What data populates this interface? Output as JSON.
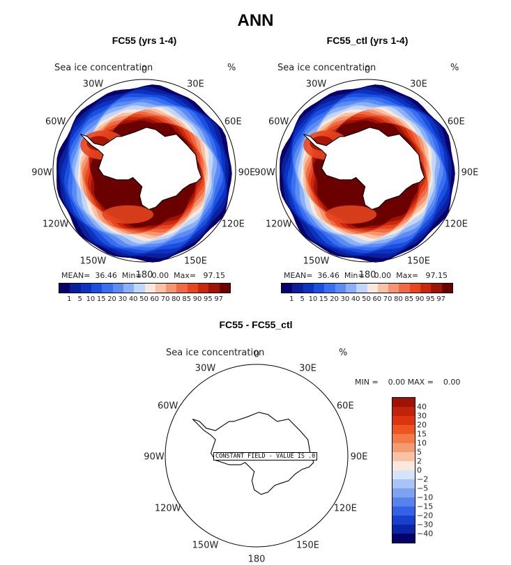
{
  "title": "ANN",
  "panels": [
    {
      "subtitle": "FC55 (yrs 1-4)",
      "var_label": "Sea ice concentration",
      "unit": "%",
      "lon_labels": [
        "0",
        "30E",
        "60E",
        "90E",
        "120E",
        "150E",
        "180",
        "150W",
        "120W",
        "90W",
        "60W",
        "30W"
      ],
      "stats": "MEAN=  36.46  Min=    0.00  Max=   97.15"
    },
    {
      "subtitle": "FC55_ctl (yrs 1-4)",
      "var_label": "Sea ice concentration",
      "unit": "%",
      "lon_labels": [
        "0",
        "30E",
        "60E",
        "90E",
        "120E",
        "150E",
        "180",
        "150W",
        "120W",
        "90W",
        "60W",
        "30W"
      ],
      "stats": "MEAN=  36.46  Min=    0.00  Max=   97.15"
    }
  ],
  "top_colorbar": {
    "labels": [
      "1",
      "5",
      "10",
      "15",
      "20",
      "30",
      "40",
      "50",
      "60",
      "70",
      "80",
      "85",
      "90",
      "95",
      "97"
    ],
    "colors": [
      "#08006b",
      "#0a1f9a",
      "#0c33c0",
      "#1a4fe0",
      "#3a6ef0",
      "#5b8cf4",
      "#8bb0f7",
      "#c0d6fb",
      "#fbe8dc",
      "#f7c3a4",
      "#f4966e",
      "#ef6a45",
      "#e8461e",
      "#c8280c",
      "#9e1306",
      "#6b0000"
    ]
  },
  "diff_panel": {
    "subtitle": "FC55 - FC55_ctl",
    "var_label": "Sea ice concentration",
    "unit": "%",
    "lon_labels": [
      "0",
      "30E",
      "60E",
      "90E",
      "120E",
      "150E",
      "180",
      "150W",
      "120W",
      "90W",
      "60W",
      "30W"
    ],
    "stats": "MIN =    0.00 MAX =    0.00",
    "note": "CONSTANT FIELD - VALUE IS .0"
  },
  "diff_colorbar": {
    "labels": [
      "40",
      "30",
      "20",
      "15",
      "10",
      "5",
      "2",
      "0",
      "−2",
      "−5",
      "−10",
      "−15",
      "−20",
      "−30",
      "−40"
    ],
    "colors": [
      "#9e1306",
      "#c0230a",
      "#dc3410",
      "#ef5520",
      "#f47a48",
      "#f59b72",
      "#f7c3a4",
      "#fbe8dc",
      "#d6e4fb",
      "#a8c3f6",
      "#7ca2f1",
      "#5783ec",
      "#3462e6",
      "#1840cc",
      "#0a26a6",
      "#08006b"
    ]
  }
}
